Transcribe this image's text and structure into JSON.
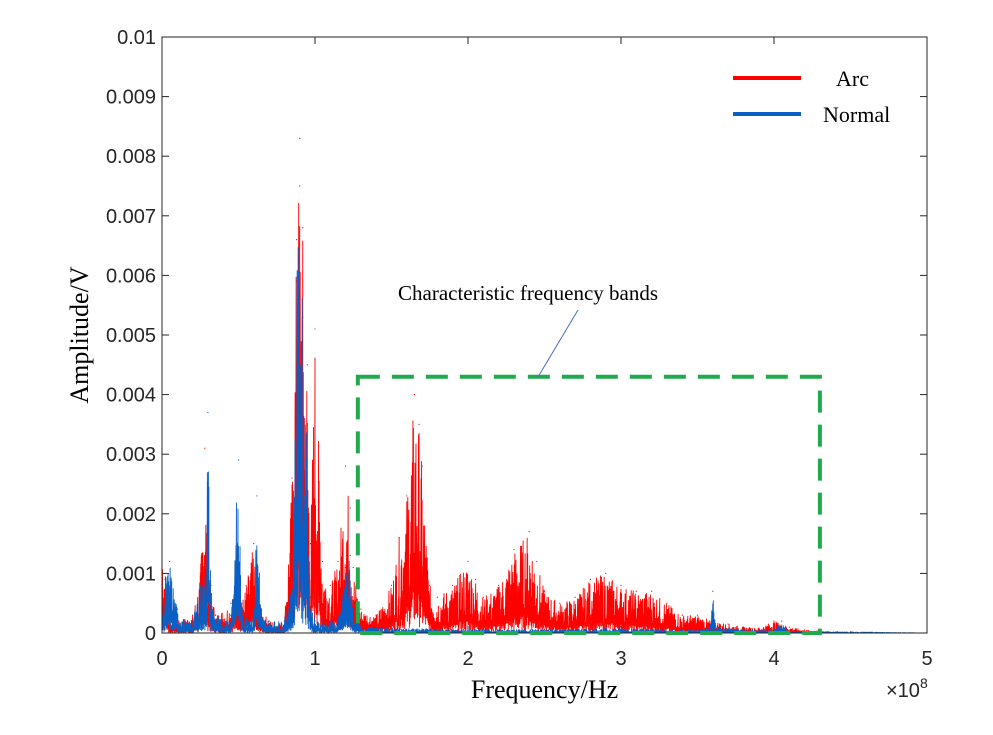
{
  "chart_data": {
    "type": "line",
    "title": "",
    "xlabel": "Frequency/Hz",
    "ylabel": "Amplitude/V",
    "x_scale_note": "×10",
    "x_scale_exponent": "8",
    "xlim": [
      0,
      5
    ],
    "ylim": [
      0,
      0.01
    ],
    "x_ticks": [
      "0",
      "1",
      "2",
      "3",
      "4",
      "5"
    ],
    "y_ticks": [
      "0",
      "0.001",
      "0.002",
      "0.003",
      "0.004",
      "0.005",
      "0.006",
      "0.007",
      "0.008",
      "0.009",
      "0.01"
    ],
    "legend_position": "top-right",
    "series": [
      {
        "name": "Arc",
        "color": "#ff0000",
        "x": [
          0,
          0.05,
          0.1,
          0.2,
          0.25,
          0.28,
          0.3,
          0.32,
          0.35,
          0.45,
          0.5,
          0.52,
          0.55,
          0.6,
          0.62,
          0.65,
          0.7,
          0.8,
          0.85,
          0.88,
          0.9,
          0.92,
          0.95,
          0.97,
          1.0,
          1.05,
          1.1,
          1.15,
          1.2,
          1.23,
          1.25,
          1.3,
          1.4,
          1.5,
          1.55,
          1.6,
          1.65,
          1.68,
          1.7,
          1.75,
          1.8,
          1.9,
          2.0,
          2.05,
          2.1,
          2.2,
          2.3,
          2.4,
          2.45,
          2.5,
          2.6,
          2.7,
          2.8,
          2.9,
          3.0,
          3.1,
          3.2,
          3.3,
          3.4,
          3.5,
          3.6,
          3.7,
          3.8,
          3.9,
          4.0,
          4.1,
          4.2,
          4.3,
          4.5,
          5.0
        ],
        "values": [
          0.0018,
          0.0002,
          0.0002,
          0.0003,
          0.001,
          0.0031,
          0.0012,
          0.0008,
          0.0003,
          0.0005,
          0.0013,
          0.0005,
          0.0008,
          0.0015,
          0.0004,
          0.0004,
          0.0002,
          0.0002,
          0.0026,
          0.0066,
          0.0083,
          0.0068,
          0.0045,
          0.0015,
          0.0051,
          0.0012,
          0.0008,
          0.0012,
          0.0028,
          0.0021,
          0.0011,
          0.0004,
          0.0003,
          0.0008,
          0.0016,
          0.0023,
          0.004,
          0.0035,
          0.0028,
          0.0008,
          0.0006,
          0.0008,
          0.0012,
          0.0009,
          0.0006,
          0.0008,
          0.0014,
          0.0017,
          0.0012,
          0.0007,
          0.0005,
          0.0006,
          0.0009,
          0.001,
          0.0008,
          0.0007,
          0.0007,
          0.0005,
          0.0003,
          0.0003,
          0.0002,
          0.00015,
          0.0001,
          8e-05,
          0.0002,
          0.0001,
          5e-05,
          3e-05,
          0.0,
          0.0
        ]
      },
      {
        "name": "Normal",
        "color": "#0a5fc4",
        "x": [
          0,
          0.02,
          0.05,
          0.1,
          0.15,
          0.2,
          0.25,
          0.28,
          0.3,
          0.32,
          0.35,
          0.4,
          0.45,
          0.5,
          0.52,
          0.55,
          0.6,
          0.62,
          0.65,
          0.7,
          0.8,
          0.85,
          0.88,
          0.9,
          0.92,
          0.95,
          0.97,
          1.0,
          1.05,
          1.1,
          1.15,
          1.2,
          1.23,
          1.25,
          1.3,
          1.5,
          2.0,
          2.5,
          3.0,
          3.5,
          3.58,
          3.6,
          3.62,
          3.8,
          4.0,
          4.05,
          4.1,
          4.5,
          5.0
        ],
        "values": [
          0.0004,
          0.0009,
          0.0012,
          0.0004,
          0.0002,
          0.0002,
          0.0008,
          0.0011,
          0.0037,
          0.0006,
          0.0003,
          0.0002,
          0.0003,
          0.0029,
          0.0005,
          0.0003,
          0.0004,
          0.0023,
          0.0003,
          0.0002,
          0.0002,
          0.001,
          0.0059,
          0.0075,
          0.0053,
          0.0033,
          0.0006,
          0.0002,
          0.0002,
          0.0002,
          0.0002,
          0.0011,
          0.0013,
          0.0004,
          0.0001,
          8e-05,
          6e-05,
          6e-05,
          8e-05,
          5e-05,
          0.0001,
          0.0007,
          0.0001,
          5e-05,
          5e-05,
          0.0002,
          3e-05,
          2e-05,
          0.0
        ]
      }
    ],
    "annotations": [
      {
        "type": "dashed-rect",
        "label": "Characteristic frequency bands",
        "color": "#1fab4b",
        "x_range": [
          1.28,
          4.3
        ],
        "y_range": [
          0,
          0.0043
        ]
      }
    ]
  }
}
